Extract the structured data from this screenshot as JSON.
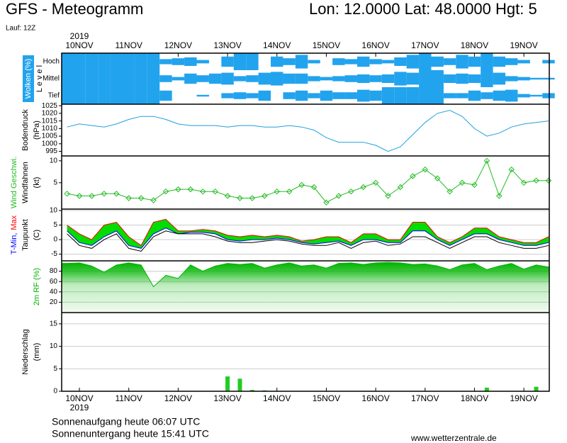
{
  "header": {
    "title": "GFS - Meteogramm",
    "location": "Lon: 12.0000 Lat: 48.0000 Hgt: 5",
    "run": "Lauf: 12Z"
  },
  "timeline": {
    "year": "2019",
    "categories": [
      null,
      "10NOV",
      null,
      null,
      null,
      "11NOV",
      null,
      null,
      null,
      "12NOV",
      null,
      null,
      null,
      "13NOV",
      null,
      null,
      null,
      "14NOV",
      null,
      null,
      null,
      "15NOV",
      null,
      null,
      null,
      "16NOV",
      null,
      null,
      null,
      "17NOV",
      null,
      null,
      null,
      "18NOV",
      null,
      null,
      null,
      "19NOV",
      null,
      null
    ]
  },
  "chart_data": [
    {
      "type": "cloud-cover",
      "ylabel": [
        "Wolken (%)",
        "L e v e l"
      ],
      "color": "#22a3ee",
      "series": [
        {
          "name": "Hoch",
          "values": [
            100,
            100,
            100,
            100,
            100,
            100,
            100,
            100,
            30,
            40,
            50,
            20,
            0,
            60,
            100,
            100,
            0,
            60,
            40,
            80,
            20,
            0,
            40,
            30,
            60,
            30,
            20,
            50,
            80,
            100,
            60,
            40,
            80,
            60,
            100,
            60,
            40,
            20,
            0,
            20
          ]
        },
        {
          "name": "Mittel",
          "values": [
            100,
            100,
            100,
            100,
            100,
            100,
            100,
            100,
            40,
            20,
            60,
            40,
            60,
            70,
            30,
            40,
            70,
            80,
            60,
            60,
            30,
            20,
            30,
            40,
            50,
            40,
            50,
            80,
            70,
            100,
            100,
            50,
            60,
            50,
            100,
            70,
            30,
            20,
            10,
            10
          ]
        },
        {
          "name": "Tief",
          "values": [
            100,
            100,
            100,
            100,
            100,
            100,
            100,
            100,
            60,
            0,
            0,
            10,
            0,
            30,
            40,
            30,
            60,
            0,
            40,
            60,
            30,
            60,
            40,
            40,
            70,
            60,
            100,
            100,
            100,
            100,
            100,
            30,
            30,
            60,
            40,
            60,
            70,
            20,
            10,
            30
          ]
        }
      ]
    },
    {
      "type": "line",
      "ylabel": [
        "Bodendruck",
        "(hPa)"
      ],
      "ylim": [
        992,
        1026
      ],
      "yticks": [
        995,
        1000,
        1005,
        1010,
        1015,
        1020,
        1025
      ],
      "grid": false,
      "series": [
        {
          "color": "#1f9fe0",
          "values": [
            1011,
            1013,
            1012,
            1011,
            1013,
            1016,
            1018,
            1018,
            1016,
            1013,
            1012,
            1012,
            1012,
            1011,
            1012,
            1012,
            1011,
            1011,
            1012,
            1011,
            1009,
            1004,
            1001,
            1001,
            1001,
            999,
            995,
            998,
            1006,
            1014,
            1020,
            1022,
            1018,
            1010,
            1005,
            1007,
            1011,
            1013,
            1014,
            1015
          ]
        }
      ]
    },
    {
      "type": "line",
      "ylabel": [
        "Windfahnen",
        "(kt)"
      ],
      "legend_lines": [
        [
          0
        ]
      ],
      "ylim": [
        -1,
        11.1
      ],
      "yticks": [
        5,
        10
      ],
      "grid": false,
      "markers": "diamond",
      "series": [
        {
          "name": "Wind Geschwi.",
          "color": "#22bb22",
          "values": [
            2.5,
            2,
            2,
            2.5,
            2.5,
            1.5,
            1.5,
            1,
            3,
            3.5,
            3.5,
            3,
            3,
            2,
            1.5,
            1.5,
            2,
            3,
            3,
            4.5,
            4,
            0.5,
            2,
            3,
            4,
            5,
            2,
            4,
            6.5,
            8,
            6,
            3,
            5,
            4.5,
            10,
            2,
            8,
            5,
            5.5,
            5.5
          ]
        }
      ]
    },
    {
      "type": "line",
      "ylabel": [
        "(C)"
      ],
      "legend_lines": [
        [
          0,
          1
        ],
        [
          2
        ]
      ],
      "ylim": [
        -7.3,
        10.5
      ],
      "yticks": [
        -5,
        0,
        5,
        10
      ],
      "grid": true,
      "fill_between": [
        0,
        1
      ],
      "fill_color": "#00dd00",
      "series": [
        {
          "name": "T-Min,",
          "color": "#0000ff",
          "values": [
            3,
            -1,
            -2,
            1,
            3,
            -2,
            -3,
            2,
            4,
            2,
            2.5,
            2.5,
            2,
            0,
            -0.5,
            0,
            0,
            0.5,
            0,
            -1,
            -1.5,
            -1,
            -0.5,
            -2,
            0,
            0,
            -1,
            -1,
            3,
            3,
            0,
            -2,
            0,
            2,
            2,
            0,
            -1,
            -2,
            -2,
            -1
          ]
        },
        {
          "name": "Max",
          "color": "#ff0000",
          "values": [
            5,
            2,
            0,
            5,
            6,
            1,
            -2,
            6,
            7,
            3,
            3,
            3.5,
            3,
            1.5,
            1,
            1.5,
            1,
            1.5,
            1,
            -0.5,
            0,
            1,
            1,
            -1,
            2,
            2,
            0,
            0,
            6,
            6,
            1,
            -1,
            1,
            4,
            4,
            1,
            0,
            -1,
            -1,
            1
          ]
        },
        {
          "name": "Taupunkt",
          "color": "#000000",
          "values": [
            2,
            -2,
            -3,
            0,
            2,
            -3,
            -4,
            1,
            3,
            2,
            2,
            2,
            1,
            -0.5,
            -1,
            -1,
            -0.5,
            0,
            -0.5,
            -1.5,
            -2,
            -2,
            -1,
            -3,
            -1,
            -0.5,
            -2,
            -1.5,
            1,
            1,
            -1,
            -3,
            -1,
            1,
            1,
            -1,
            -2,
            -3,
            -3,
            -2
          ]
        }
      ]
    },
    {
      "type": "area",
      "legend_lines": [
        [
          0
        ]
      ],
      "ylim": [
        0,
        100
      ],
      "yticks": [
        20,
        40,
        60,
        80
      ],
      "grid": true,
      "series": [
        {
          "name": "2m RF (%)",
          "color": "#00b400",
          "values": [
            95,
            96,
            90,
            78,
            92,
            96,
            92,
            50,
            72,
            66,
            92,
            80,
            90,
            95,
            93,
            95,
            86,
            92,
            96,
            90,
            92,
            86,
            95,
            96,
            93,
            96,
            97,
            96,
            93,
            94,
            90,
            83,
            92,
            95,
            83,
            90,
            95,
            84,
            92,
            88
          ]
        }
      ]
    },
    {
      "type": "bar",
      "ylabel": [
        "Niederschlag",
        "(mm)"
      ],
      "ylim": [
        0,
        17.5
      ],
      "yticks": [
        0,
        5,
        10,
        15
      ],
      "grid": true,
      "series": [
        {
          "color": "#22cc22",
          "values": [
            0,
            0,
            0,
            0,
            0,
            0,
            0,
            0,
            0,
            0,
            0,
            0,
            0,
            3.3,
            2.8,
            0.3,
            0.2,
            0,
            0,
            0,
            0,
            0,
            0,
            0,
            0,
            0,
            0,
            0,
            0,
            0,
            0,
            0,
            0,
            0,
            0.8,
            0,
            0,
            0,
            1.0,
            0
          ]
        }
      ]
    }
  ],
  "footer": {
    "sunrise": "Sonnenaufgang heute 06:07 UTC",
    "sunset": "Sonnenuntergang heute 15:41 UTC",
    "source": "www.wetterzentrale.de"
  }
}
